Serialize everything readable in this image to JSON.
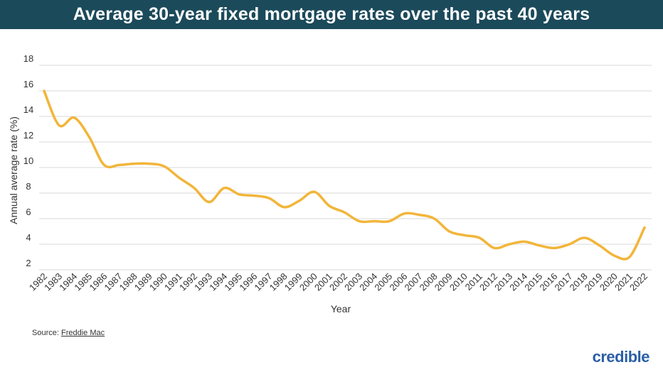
{
  "header": {
    "title": "Average 30-year fixed mortgage rates over the past 40 years"
  },
  "footer": {
    "source_label": "Source: ",
    "source_link": "Freddie Mac",
    "brand": "credible"
  },
  "colors": {
    "title_bar": "#1b4a5a",
    "line": "#f2b53a",
    "grid": "#d9d9d9",
    "brand": "#2b5fa6"
  },
  "chart_data": {
    "type": "line",
    "title": "Average 30-year fixed mortgage rates over the past 40 years",
    "xlabel": "Year",
    "ylabel": "Annual average rate (%)",
    "ylim": [
      2,
      18
    ],
    "yticks": [
      2,
      4,
      6,
      8,
      10,
      12,
      14,
      16,
      18
    ],
    "grid": true,
    "categories": [
      "1982",
      "1983",
      "1984",
      "1985",
      "1986",
      "1987",
      "1988",
      "1989",
      "1990",
      "1991",
      "1992",
      "1993",
      "1994",
      "1995",
      "1996",
      "1997",
      "1998",
      "1999",
      "2000",
      "2001",
      "2002",
      "2003",
      "2004",
      "2005",
      "2006",
      "2007",
      "2008",
      "2009",
      "2010",
      "2011",
      "2012",
      "2013",
      "2014",
      "2015",
      "2016",
      "2017",
      "2018",
      "2019",
      "2020",
      "2021",
      "2022"
    ],
    "series": [
      {
        "values": [
          16.0,
          13.3,
          13.9,
          12.4,
          10.2,
          10.2,
          10.3,
          10.3,
          10.1,
          9.2,
          8.4,
          7.3,
          8.4,
          7.9,
          7.8,
          7.6,
          6.9,
          7.4,
          8.1,
          7.0,
          6.5,
          5.8,
          5.8,
          5.8,
          6.4,
          6.3,
          6.0,
          5.0,
          4.7,
          4.5,
          3.7,
          4.0,
          4.2,
          3.9,
          3.7,
          4.0,
          4.5,
          3.9,
          3.1,
          3.0,
          5.3
        ]
      }
    ]
  }
}
